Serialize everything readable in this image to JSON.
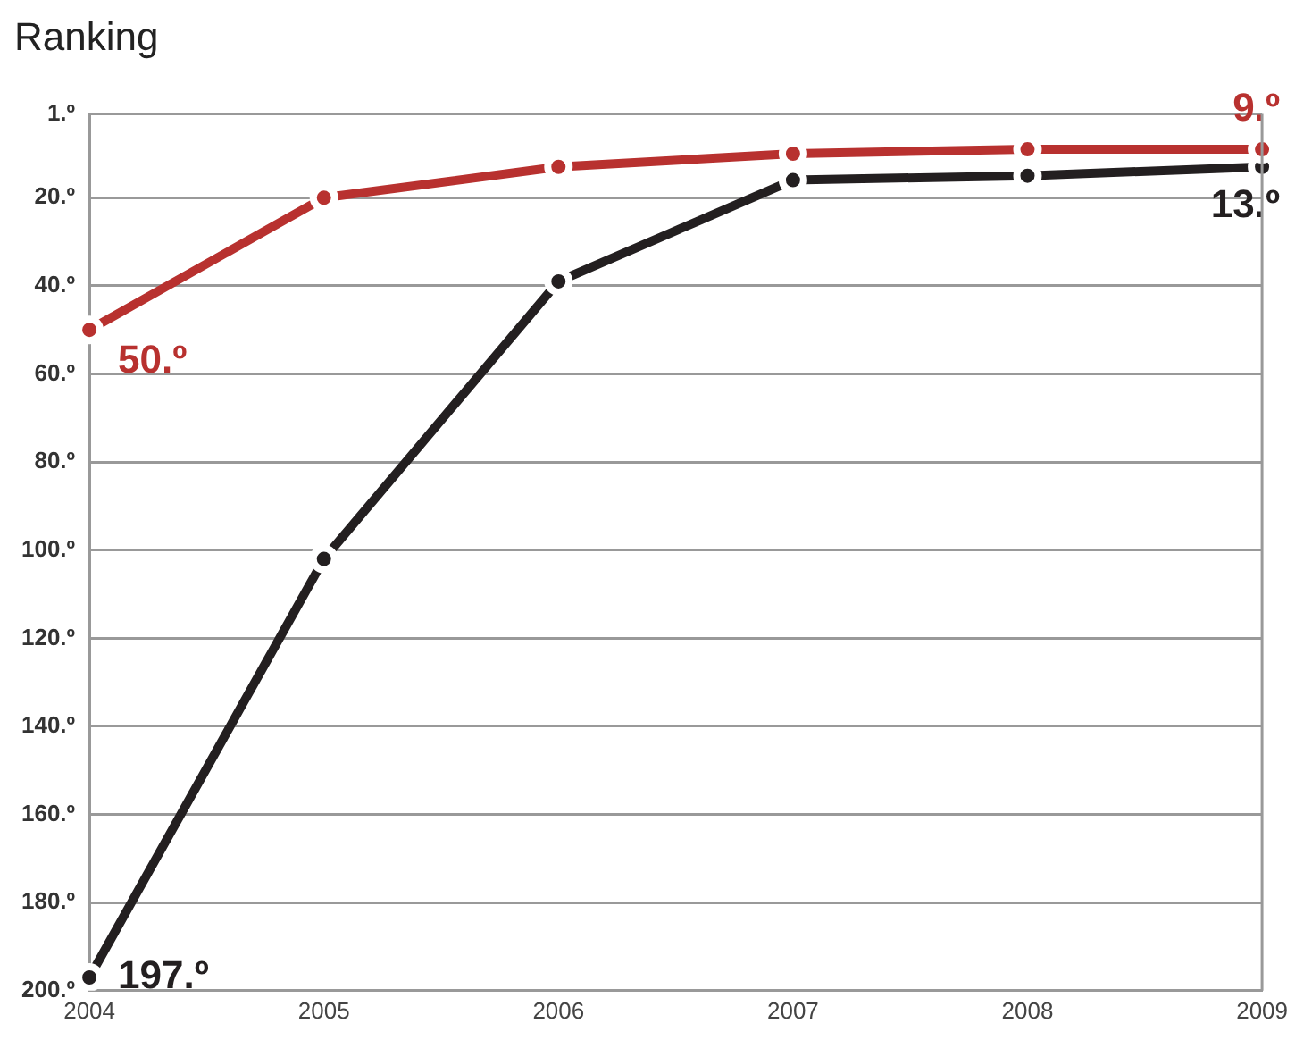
{
  "chart_data": {
    "type": "line",
    "title": "Ranking",
    "categories": [
      "2004",
      "2005",
      "2006",
      "2007",
      "2008",
      "2009"
    ],
    "series": [
      {
        "color": "#b8312f",
        "values": [
          50,
          20,
          13,
          10,
          9,
          9
        ],
        "value_labels": [
          "50.º",
          null,
          null,
          null,
          null,
          "9.º"
        ]
      },
      {
        "color": "#231f20",
        "values": [
          197,
          102,
          39,
          16,
          15,
          13
        ],
        "value_labels": [
          "197.º",
          null,
          null,
          null,
          null,
          "13.º"
        ]
      }
    ],
    "ylim": [
      200,
      1
    ],
    "yticks": [
      {
        "value": 1,
        "label": "1.º"
      },
      {
        "value": 20,
        "label": "20.º"
      },
      {
        "value": 40,
        "label": "40.º"
      },
      {
        "value": 60,
        "label": "60.º"
      },
      {
        "value": 80,
        "label": "80.º"
      },
      {
        "value": 100,
        "label": "100.º"
      },
      {
        "value": 120,
        "label": "120.º"
      },
      {
        "value": 140,
        "label": "140.º"
      },
      {
        "value": 160,
        "label": "160.º"
      },
      {
        "value": 180,
        "label": "180.º"
      },
      {
        "value": 200,
        "label": "200.º"
      }
    ],
    "grid": "y",
    "legend": false,
    "marker": "circle",
    "line_style": "solid"
  }
}
